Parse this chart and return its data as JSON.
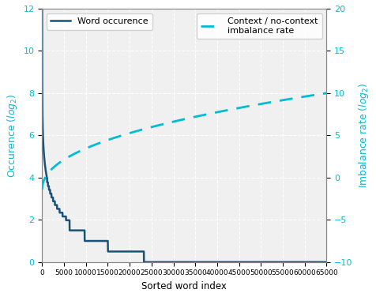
{
  "title": "",
  "xlabel": "Sorted word index",
  "ylabel_left": "Occurence ($log_2$)",
  "ylabel_right": "Imbalance rate ($log_2$)",
  "legend_line1": "Word occurence",
  "legend_line2": "Context / no-context\nimbalance rate",
  "xlim": [
    0,
    65000
  ],
  "ylim_left": [
    0,
    12
  ],
  "ylim_right": [
    -10,
    20
  ],
  "xticks": [
    0,
    5000,
    10000,
    15000,
    20000,
    25000,
    30000,
    35000,
    40000,
    45000,
    50000,
    55000,
    60000,
    65000
  ],
  "yticks_left": [
    0,
    2,
    4,
    6,
    8,
    10,
    12
  ],
  "yticks_right": [
    -10,
    -5,
    0,
    5,
    10,
    15,
    20
  ],
  "color_line1": "#1a5276",
  "color_line2": "#00bcd4",
  "color_axes_left": "#00bcd4",
  "color_axes_right": "#00bcd4",
  "background_plot": "#f0f0f0",
  "background_fig": "#ffffff",
  "grid_color": "#ffffff",
  "n_words": 65000,
  "imbalance_start_x": 500,
  "imbalance_start_y": -1.5,
  "imbalance_end_y": 10.0,
  "imbalance_curve_power": 0.45
}
